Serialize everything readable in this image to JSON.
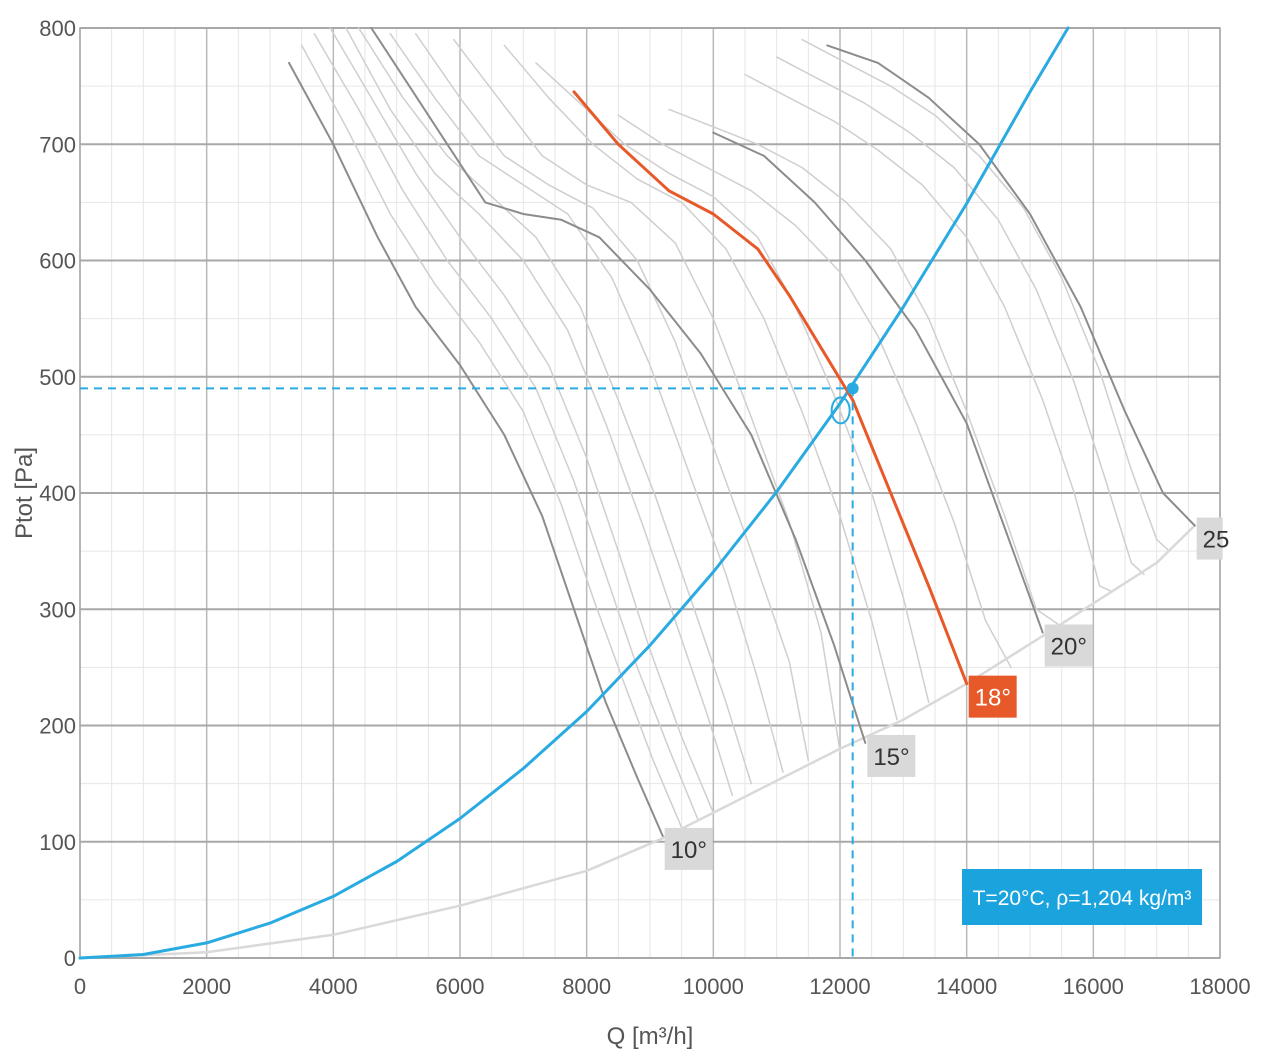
{
  "chart_data": {
    "type": "line",
    "xlabel": "Q [m³/h]",
    "ylabel": "Ptot [Pa]",
    "xlim": [
      0,
      18000
    ],
    "ylim": [
      0,
      800
    ],
    "x_ticks": [
      0,
      2000,
      4000,
      6000,
      8000,
      10000,
      12000,
      14000,
      16000,
      18000
    ],
    "y_ticks": [
      0,
      100,
      200,
      300,
      400,
      500,
      600,
      700,
      800
    ],
    "x_tick_labels": [
      "0",
      "2000",
      "4000",
      "6000",
      "8000",
      "10000",
      "12000",
      "14000",
      "16000",
      "18000"
    ],
    "y_tick_labels": [
      "0",
      "100",
      "200",
      "300",
      "400",
      "500",
      "600",
      "700",
      "800"
    ],
    "grid": true,
    "colors": {
      "system_curve": "#29abe2",
      "highlight_curve": "#e8592a",
      "blade_major": "#8c8c8c",
      "blade_minor": "#cfcfcf",
      "limit_curve": "#d9d9d9",
      "label_bg": "#d9d9d9",
      "info_bg": "#1aa3dd"
    },
    "series": [
      {
        "role": "system_curve",
        "points": [
          [
            0,
            0
          ],
          [
            1000,
            3
          ],
          [
            2000,
            13
          ],
          [
            3000,
            30
          ],
          [
            4000,
            53
          ],
          [
            5000,
            83
          ],
          [
            6000,
            120
          ],
          [
            7000,
            163
          ],
          [
            8000,
            212
          ],
          [
            9000,
            269
          ],
          [
            10000,
            332
          ],
          [
            11000,
            401
          ],
          [
            12000,
            477
          ],
          [
            13000,
            560
          ],
          [
            14000,
            649
          ],
          [
            15000,
            745
          ],
          [
            15600,
            800
          ]
        ]
      },
      {
        "role": "limit_curve",
        "points": [
          [
            0,
            0
          ],
          [
            2000,
            5
          ],
          [
            4000,
            20
          ],
          [
            6000,
            45
          ],
          [
            8000,
            75
          ],
          [
            9200,
            103
          ],
          [
            10000,
            125
          ],
          [
            12000,
            180
          ],
          [
            13000,
            205
          ],
          [
            14000,
            236
          ],
          [
            15200,
            277
          ],
          [
            16000,
            305
          ],
          [
            17000,
            340
          ],
          [
            17600,
            372
          ]
        ]
      },
      {
        "role": "blade_major",
        "label": "10°",
        "points": [
          [
            3300,
            770
          ],
          [
            4000,
            700
          ],
          [
            4700,
            620
          ],
          [
            5300,
            560
          ],
          [
            6000,
            510
          ],
          [
            6700,
            450
          ],
          [
            7300,
            380
          ],
          [
            7800,
            300
          ],
          [
            8300,
            220
          ],
          [
            8800,
            155
          ],
          [
            9200,
            105
          ]
        ]
      },
      {
        "role": "blade_major",
        "label": "15°",
        "points": [
          [
            4600,
            800
          ],
          [
            5200,
            750
          ],
          [
            5800,
            700
          ],
          [
            6400,
            650
          ],
          [
            7000,
            640
          ],
          [
            7600,
            635
          ],
          [
            8200,
            620
          ],
          [
            9000,
            575
          ],
          [
            9800,
            520
          ],
          [
            10600,
            450
          ],
          [
            11300,
            360
          ],
          [
            11900,
            270
          ],
          [
            12400,
            185
          ]
        ]
      },
      {
        "role": "blade_highlight",
        "label": "18°",
        "points": [
          [
            7800,
            745
          ],
          [
            8500,
            700
          ],
          [
            9300,
            660
          ],
          [
            10000,
            640
          ],
          [
            10700,
            610
          ],
          [
            11200,
            570
          ],
          [
            11700,
            525
          ],
          [
            12200,
            480
          ],
          [
            12800,
            400
          ],
          [
            13400,
            320
          ],
          [
            14000,
            236
          ]
        ]
      },
      {
        "role": "blade_major",
        "label": "20°",
        "points": [
          [
            10000,
            710
          ],
          [
            10800,
            690
          ],
          [
            11600,
            650
          ],
          [
            12400,
            600
          ],
          [
            13200,
            540
          ],
          [
            14000,
            460
          ],
          [
            14600,
            370
          ],
          [
            15200,
            280
          ]
        ]
      },
      {
        "role": "blade_major",
        "label": "25°",
        "points": [
          [
            11800,
            785
          ],
          [
            12600,
            770
          ],
          [
            13400,
            740
          ],
          [
            14200,
            700
          ],
          [
            15000,
            640
          ],
          [
            15800,
            560
          ],
          [
            16500,
            470
          ],
          [
            17100,
            400
          ],
          [
            17600,
            372
          ]
        ]
      },
      {
        "role": "blade_minor",
        "points": [
          [
            3500,
            785
          ],
          [
            4200,
            715
          ],
          [
            4900,
            640
          ],
          [
            5600,
            580
          ],
          [
            6300,
            530
          ],
          [
            7000,
            470
          ],
          [
            7600,
            390
          ],
          [
            8100,
            310
          ],
          [
            8600,
            235
          ],
          [
            9050,
            170
          ],
          [
            9500,
            112
          ]
        ]
      },
      {
        "role": "blade_minor",
        "points": [
          [
            3700,
            795
          ],
          [
            4400,
            730
          ],
          [
            5100,
            660
          ],
          [
            5800,
            600
          ],
          [
            6500,
            550
          ],
          [
            7200,
            490
          ],
          [
            7800,
            410
          ],
          [
            8300,
            330
          ],
          [
            8800,
            250
          ],
          [
            9300,
            180
          ],
          [
            9750,
            120
          ]
        ]
      },
      {
        "role": "blade_minor",
        "points": [
          [
            3950,
            800
          ],
          [
            4600,
            740
          ],
          [
            5300,
            675
          ],
          [
            6000,
            620
          ],
          [
            6700,
            570
          ],
          [
            7400,
            510
          ],
          [
            8000,
            430
          ],
          [
            8500,
            350
          ],
          [
            9000,
            265
          ],
          [
            9500,
            190
          ],
          [
            10000,
            125
          ]
        ]
      },
      {
        "role": "blade_minor",
        "points": [
          [
            4200,
            800
          ],
          [
            4900,
            730
          ],
          [
            5600,
            675
          ],
          [
            6300,
            640
          ],
          [
            7000,
            600
          ],
          [
            7700,
            540
          ],
          [
            8300,
            460
          ],
          [
            8900,
            370
          ],
          [
            9400,
            290
          ],
          [
            9900,
            210
          ],
          [
            10300,
            140
          ]
        ]
      },
      {
        "role": "blade_minor",
        "points": [
          [
            4400,
            800
          ],
          [
            5100,
            740
          ],
          [
            5800,
            690
          ],
          [
            6500,
            655
          ],
          [
            7200,
            620
          ],
          [
            7900,
            560
          ],
          [
            8500,
            480
          ],
          [
            9100,
            395
          ],
          [
            9700,
            300
          ],
          [
            10200,
            220
          ],
          [
            10600,
            150
          ]
        ]
      },
      {
        "role": "blade_minor",
        "points": [
          [
            4900,
            795
          ],
          [
            5600,
            740
          ],
          [
            6300,
            690
          ],
          [
            7000,
            665
          ],
          [
            7700,
            640
          ],
          [
            8400,
            585
          ],
          [
            9000,
            510
          ],
          [
            9600,
            420
          ],
          [
            10200,
            330
          ],
          [
            10700,
            240
          ],
          [
            11100,
            160
          ]
        ]
      },
      {
        "role": "blade_minor",
        "points": [
          [
            5300,
            795
          ],
          [
            6000,
            740
          ],
          [
            6700,
            690
          ],
          [
            7400,
            665
          ],
          [
            8100,
            645
          ],
          [
            8800,
            600
          ],
          [
            9400,
            530
          ],
          [
            10000,
            440
          ],
          [
            10600,
            350
          ],
          [
            11200,
            255
          ],
          [
            11500,
            170
          ]
        ]
      },
      {
        "role": "blade_minor",
        "points": [
          [
            5900,
            790
          ],
          [
            6600,
            740
          ],
          [
            7300,
            690
          ],
          [
            8000,
            665
          ],
          [
            8700,
            650
          ],
          [
            9400,
            615
          ],
          [
            10000,
            550
          ],
          [
            10600,
            465
          ],
          [
            11200,
            375
          ],
          [
            11700,
            280
          ],
          [
            12000,
            178
          ]
        ]
      },
      {
        "role": "blade_minor",
        "points": [
          [
            6700,
            785
          ],
          [
            7400,
            740
          ],
          [
            8100,
            700
          ],
          [
            8800,
            670
          ],
          [
            9500,
            650
          ],
          [
            10200,
            610
          ],
          [
            10800,
            550
          ],
          [
            11400,
            470
          ],
          [
            12000,
            380
          ],
          [
            12500,
            290
          ],
          [
            12900,
            205
          ]
        ]
      },
      {
        "role": "blade_minor",
        "points": [
          [
            7200,
            770
          ],
          [
            7900,
            735
          ],
          [
            8600,
            700
          ],
          [
            9300,
            675
          ],
          [
            10000,
            655
          ],
          [
            10700,
            620
          ],
          [
            11300,
            560
          ],
          [
            11900,
            485
          ],
          [
            12500,
            400
          ],
          [
            13000,
            310
          ],
          [
            13400,
            220
          ]
        ]
      },
      {
        "role": "blade_minor",
        "points": [
          [
            8500,
            725
          ],
          [
            9200,
            700
          ],
          [
            9900,
            680
          ],
          [
            10600,
            660
          ],
          [
            11300,
            630
          ],
          [
            12000,
            590
          ],
          [
            12600,
            535
          ],
          [
            13200,
            460
          ],
          [
            13800,
            375
          ],
          [
            14300,
            290
          ],
          [
            14700,
            250
          ]
        ]
      },
      {
        "role": "blade_minor",
        "points": [
          [
            9300,
            730
          ],
          [
            10000,
            715
          ],
          [
            10700,
            700
          ],
          [
            11400,
            680
          ],
          [
            12100,
            650
          ],
          [
            12800,
            610
          ],
          [
            13400,
            550
          ],
          [
            14000,
            470
          ],
          [
            14600,
            380
          ],
          [
            15100,
            300
          ],
          [
            15500,
            285
          ]
        ]
      },
      {
        "role": "blade_minor",
        "points": [
          [
            10500,
            760
          ],
          [
            11200,
            740
          ],
          [
            11900,
            720
          ],
          [
            12600,
            695
          ],
          [
            13300,
            665
          ],
          [
            14000,
            620
          ],
          [
            14600,
            560
          ],
          [
            15200,
            480
          ],
          [
            15700,
            400
          ],
          [
            16100,
            320
          ],
          [
            16300,
            315
          ]
        ]
      },
      {
        "role": "blade_minor",
        "points": [
          [
            11000,
            775
          ],
          [
            11700,
            755
          ],
          [
            12400,
            735
          ],
          [
            13100,
            710
          ],
          [
            13800,
            680
          ],
          [
            14500,
            635
          ],
          [
            15100,
            575
          ],
          [
            15700,
            495
          ],
          [
            16200,
            410
          ],
          [
            16600,
            340
          ],
          [
            16800,
            330
          ]
        ]
      },
      {
        "role": "blade_minor",
        "points": [
          [
            11400,
            790
          ],
          [
            12100,
            770
          ],
          [
            12800,
            750
          ],
          [
            13500,
            725
          ],
          [
            14200,
            690
          ],
          [
            14900,
            645
          ],
          [
            15500,
            585
          ],
          [
            16100,
            505
          ],
          [
            16600,
            420
          ],
          [
            17000,
            360
          ],
          [
            17200,
            350
          ]
        ]
      }
    ],
    "operating_point": {
      "x": 12200,
      "y": 490
    },
    "blade_labels": [
      {
        "text": "10°",
        "x": 9200,
        "y": 105,
        "style": "grey"
      },
      {
        "text": "15°",
        "x": 12400,
        "y": 185,
        "style": "grey"
      },
      {
        "text": "18°",
        "x": 14000,
        "y": 236,
        "style": "highlight"
      },
      {
        "text": "20°",
        "x": 15200,
        "y": 280,
        "style": "grey"
      },
      {
        "text": "25",
        "x": 17600,
        "y": 372,
        "style": "grey"
      }
    ],
    "annotation": "T=20°C, ρ=1,204 kg/m³"
  }
}
